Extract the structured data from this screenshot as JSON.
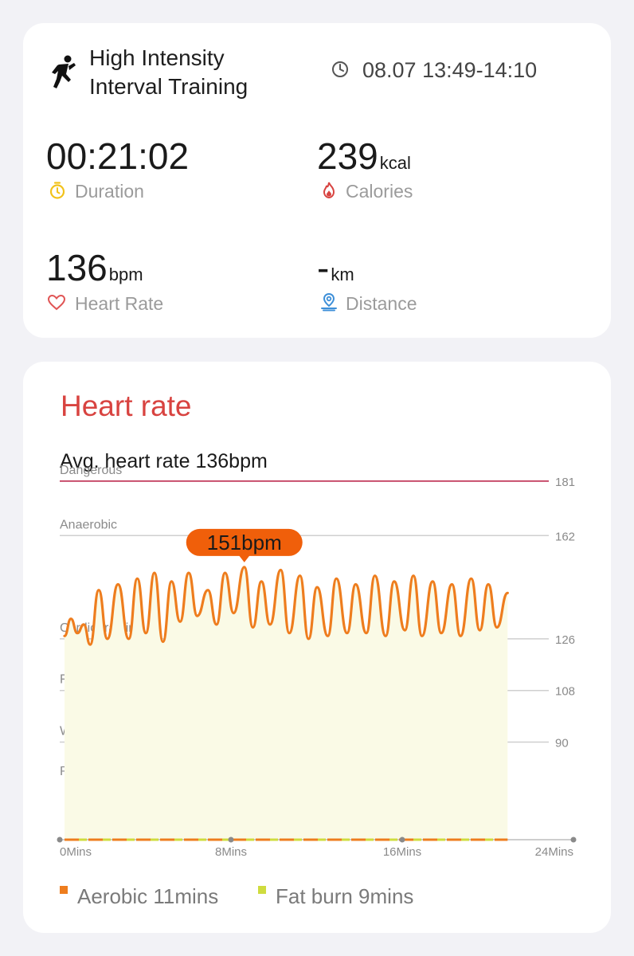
{
  "workout": {
    "title_line1": "High Intensity",
    "title_line2": "Interval Training",
    "time_range": "08.07 13:49-14:10"
  },
  "metrics": {
    "duration": {
      "value": "00:21:02",
      "unit": "",
      "label": "Duration"
    },
    "calories": {
      "value": "239",
      "unit": "kcal",
      "label": "Calories"
    },
    "heart_rate": {
      "value": "136",
      "unit": "bpm",
      "label": "Heart Rate"
    },
    "distance": {
      "value": "-",
      "unit": "km",
      "label": "Distance"
    }
  },
  "colors": {
    "accent_red": "#d84340",
    "line_orange": "#ee7d1e",
    "tooltip_orange": "#f05f0a",
    "duration_yellow": "#f2c21b",
    "distance_blue": "#3d8fd8",
    "fill_yellow": "#fafae6",
    "danger_line": "#c84d6b"
  },
  "heart_rate_card": {
    "title": "Heart rate",
    "avg_text": "Avg. heart rate 136bpm"
  },
  "chart_data": {
    "type": "line",
    "zones": [
      {
        "name": "Dangerous",
        "threshold": 181
      },
      {
        "name": "Anaerobic",
        "threshold": 162
      },
      {
        "name": "Cardio training",
        "threshold": 126
      },
      {
        "name": "Fat burning",
        "threshold": 108
      },
      {
        "name": "Warm up",
        "threshold": 90
      },
      {
        "name": "Resting",
        "threshold": null
      }
    ],
    "x_ticks": [
      "0Mins",
      "8Mins",
      "16Mins",
      "24Mins"
    ],
    "xlim": [
      0,
      24
    ],
    "peak_label": "151bpm",
    "peak": {
      "x": 8.4,
      "y": 151
    },
    "x": [
      0,
      0.3,
      0.6,
      0.9,
      1.2,
      1.6,
      2.0,
      2.5,
      3.0,
      3.4,
      3.8,
      4.2,
      4.6,
      5.0,
      5.4,
      5.8,
      6.2,
      6.7,
      7.1,
      7.5,
      7.9,
      8.4,
      8.8,
      9.2,
      9.6,
      10.1,
      10.5,
      11.0,
      11.4,
      11.8,
      12.3,
      12.7,
      13.2,
      13.6,
      14.1,
      14.5,
      15.0,
      15.4,
      15.9,
      16.3,
      16.7,
      17.2,
      17.6,
      18.1,
      18.5,
      19.0,
      19.4,
      19.8,
      20.2,
      20.7
    ],
    "y": [
      127,
      133,
      128,
      131,
      124,
      143,
      126,
      145,
      126,
      147,
      128,
      149,
      125,
      146,
      132,
      149,
      134,
      143,
      131,
      149,
      135,
      151,
      130,
      146,
      131,
      150,
      128,
      148,
      126,
      144,
      127,
      147,
      128,
      145,
      128,
      148,
      127,
      146,
      129,
      148,
      127,
      146,
      128,
      145,
      127,
      147,
      129,
      145,
      130,
      142
    ]
  },
  "legend": [
    {
      "label": "Aerobic 11mins",
      "color": "#ee7d1e"
    },
    {
      "label": "Fat burn 9mins",
      "color": "#cfdc3e"
    }
  ]
}
